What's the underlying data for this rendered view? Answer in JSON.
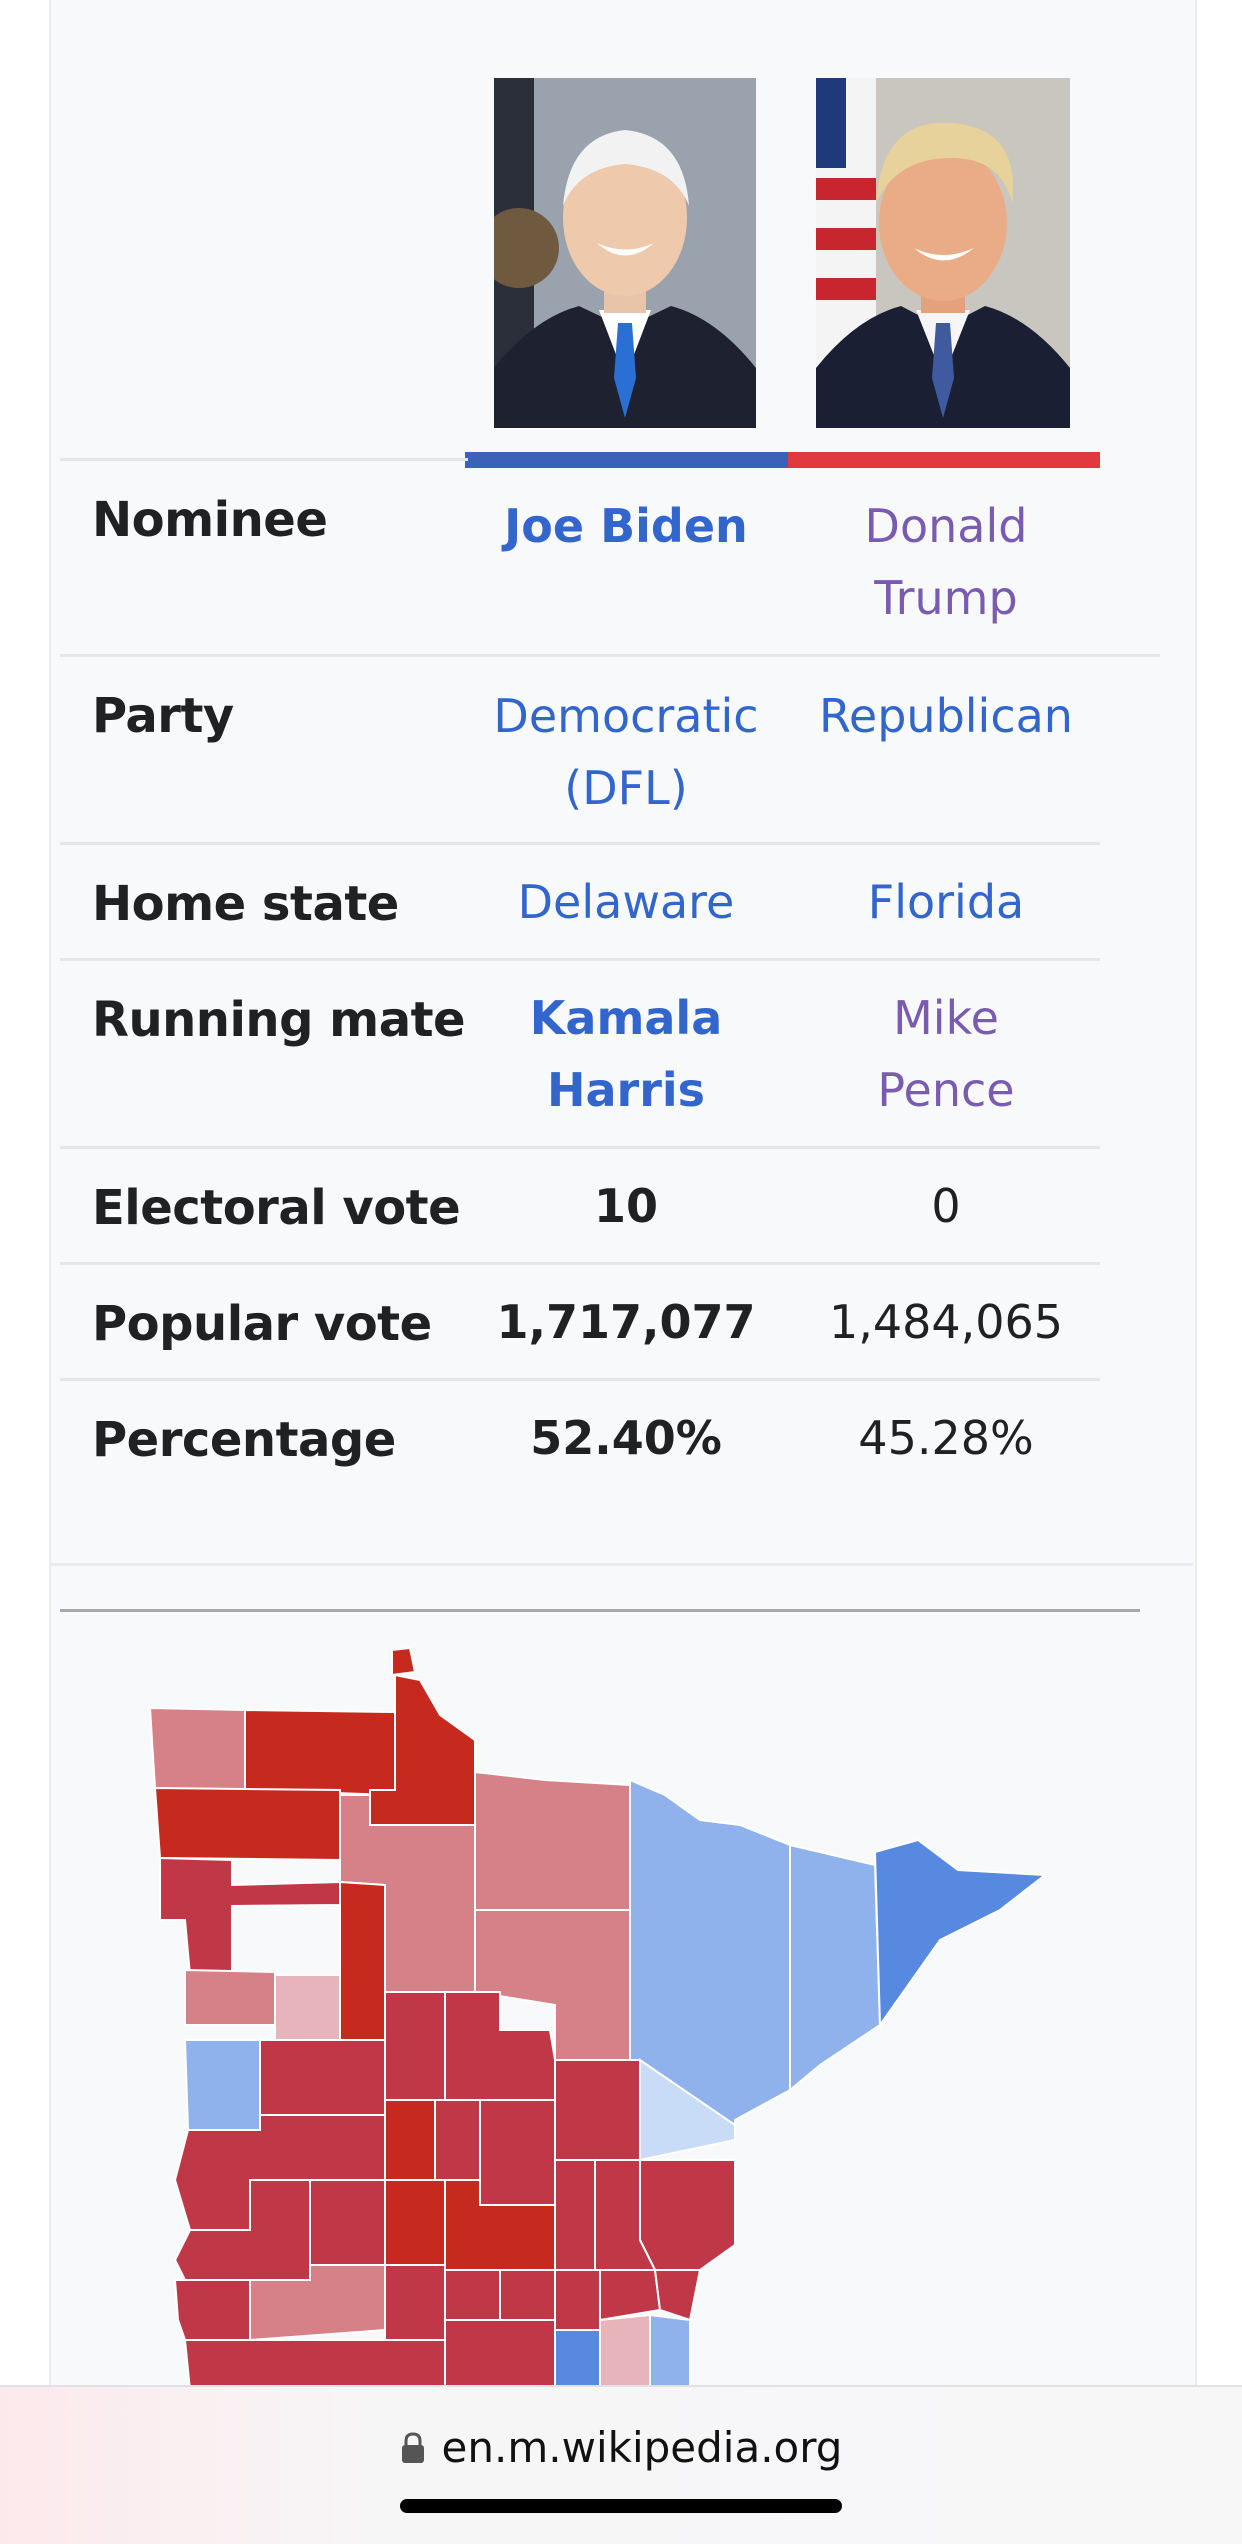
{
  "candidates": [
    {
      "name": "Joe Biden",
      "party": "Democratic (DFL)",
      "home_state": "Delaware",
      "running_mate": "Kamala Harris",
      "electoral_vote": "10",
      "popular_vote": "1,717,077",
      "percentage": "52.40%",
      "color": "#3a62b8"
    },
    {
      "name": "Donald Trump",
      "party": "Republican",
      "home_state": "Florida",
      "running_mate": "Mike Pence",
      "electoral_vote": "0",
      "popular_vote": "1,484,065",
      "percentage": "45.28%",
      "color": "#e0393e"
    }
  ],
  "rows": {
    "nominee": "Nominee",
    "party": "Party",
    "home_state": "Home state",
    "running_mate": "Running mate",
    "electoral_vote": "Electoral vote",
    "popular_vote": "Popular vote",
    "percentage": "Percentage"
  },
  "browser": {
    "url": "en.m.wikipedia.org",
    "icon": "lock-icon"
  },
  "colors": {
    "link": "#3366cc",
    "visited": "#795cb2",
    "dem": "#3a62b8",
    "rep": "#e0393e"
  }
}
